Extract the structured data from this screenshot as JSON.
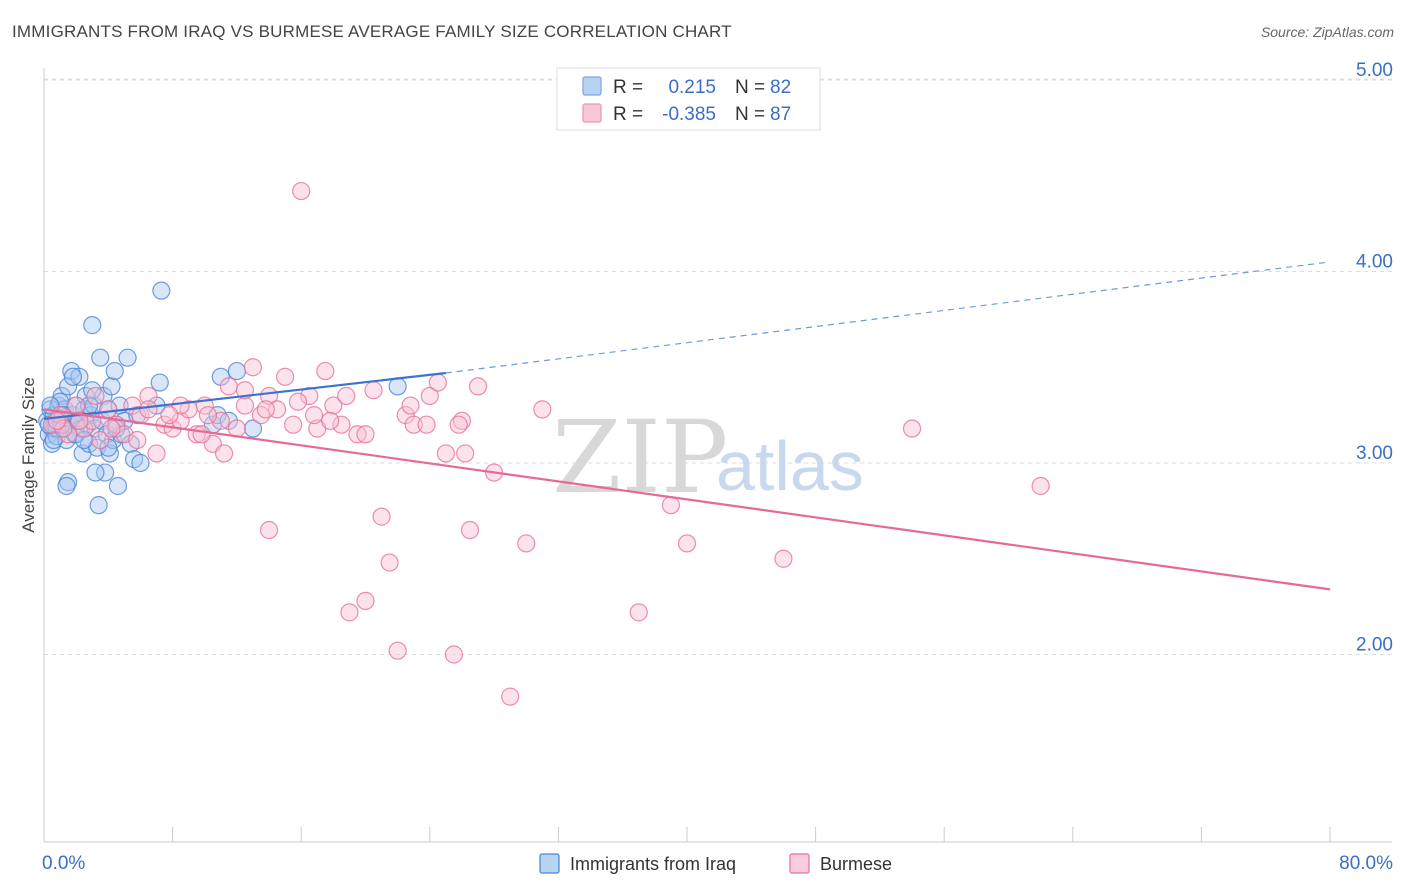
{
  "title": "IMMIGRANTS FROM IRAQ VS BURMESE AVERAGE FAMILY SIZE CORRELATION CHART",
  "source": "Source: ZipAtlas.com",
  "watermark": {
    "part1": "ZIP",
    "part2": "atlas"
  },
  "legend_box": {
    "rows": [
      {
        "r_label": "R =",
        "r_value": "0.215",
        "n_label": "N =",
        "n_value": "82",
        "color": "#7aa7e0",
        "fill": "#b8d2f2"
      },
      {
        "r_label": "R =",
        "r_value": "-0.385",
        "n_label": "N =",
        "n_value": "87",
        "color": "#ee93b3",
        "fill": "#f8c8d8"
      }
    ]
  },
  "chart_data": {
    "type": "scatter",
    "xlabel": "",
    "ylabel": "Average Family Size",
    "xlim": [
      0,
      80
    ],
    "ylim": [
      1.0,
      5.2
    ],
    "x_tick_labels": [
      "0.0%",
      "80.0%"
    ],
    "y_ticks": [
      2.0,
      3.0,
      4.0,
      5.0
    ],
    "y_tick_labels": [
      "2.00",
      "3.00",
      "4.00",
      "5.00"
    ],
    "grid": "horizontal dashed",
    "series": [
      {
        "name": "Immigrants from Iraq",
        "color": "#4a86d8",
        "fill": "#a8c8f0",
        "trend": {
          "x0": 0,
          "y0": 3.23,
          "x1": 25,
          "y1": 3.47,
          "dash_to_x": 80,
          "dash_to_y": 4.05
        },
        "points": [
          [
            0.2,
            3.22
          ],
          [
            0.3,
            3.15
          ],
          [
            0.4,
            3.28
          ],
          [
            0.5,
            3.18
          ],
          [
            0.5,
            3.1
          ],
          [
            0.6,
            3.25
          ],
          [
            0.7,
            3.2
          ],
          [
            0.8,
            3.14
          ],
          [
            0.9,
            3.3
          ],
          [
            1.0,
            3.22
          ],
          [
            1.1,
            3.35
          ],
          [
            1.2,
            3.18
          ],
          [
            1.3,
            3.28
          ],
          [
            1.4,
            3.12
          ],
          [
            1.5,
            3.4
          ],
          [
            1.6,
            3.2
          ],
          [
            1.7,
            3.48
          ],
          [
            1.8,
            3.25
          ],
          [
            1.9,
            3.15
          ],
          [
            2.0,
            3.3
          ],
          [
            2.1,
            3.22
          ],
          [
            2.2,
            3.45
          ],
          [
            2.3,
            3.18
          ],
          [
            2.4,
            3.05
          ],
          [
            2.5,
            3.28
          ],
          [
            2.6,
            3.35
          ],
          [
            2.7,
            3.2
          ],
          [
            2.8,
            3.1
          ],
          [
            2.9,
            3.25
          ],
          [
            3.0,
            3.72
          ],
          [
            3.1,
            3.3
          ],
          [
            3.2,
            3.18
          ],
          [
            3.3,
            3.08
          ],
          [
            3.4,
            2.78
          ],
          [
            3.5,
            3.55
          ],
          [
            3.6,
            3.22
          ],
          [
            3.7,
            3.35
          ],
          [
            3.8,
            2.95
          ],
          [
            3.9,
            3.15
          ],
          [
            4.0,
            3.28
          ],
          [
            4.1,
            3.05
          ],
          [
            4.2,
            3.4
          ],
          [
            4.3,
            3.12
          ],
          [
            4.4,
            3.48
          ],
          [
            4.5,
            3.2
          ],
          [
            4.6,
            2.88
          ],
          [
            4.7,
            3.3
          ],
          [
            4.8,
            3.15
          ],
          [
            5.0,
            3.22
          ],
          [
            5.2,
            3.55
          ],
          [
            5.4,
            3.1
          ],
          [
            5.6,
            3.02
          ],
          [
            5.8,
            3.25
          ],
          [
            6.0,
            3.0
          ],
          [
            7.0,
            3.3
          ],
          [
            7.2,
            3.42
          ],
          [
            7.3,
            3.9
          ],
          [
            10.5,
            3.2
          ],
          [
            10.8,
            3.25
          ],
          [
            11.0,
            3.45
          ],
          [
            11.5,
            3.22
          ],
          [
            12.0,
            3.48
          ],
          [
            13.0,
            3.18
          ],
          [
            22.0,
            3.4
          ],
          [
            1.0,
            3.32
          ],
          [
            1.5,
            2.9
          ],
          [
            2.0,
            3.15
          ],
          [
            0.8,
            3.18
          ],
          [
            1.2,
            3.25
          ],
          [
            2.5,
            3.12
          ],
          [
            3.2,
            2.95
          ],
          [
            4.0,
            3.08
          ],
          [
            0.4,
            3.3
          ],
          [
            0.6,
            3.12
          ],
          [
            1.8,
            3.45
          ],
          [
            2.2,
            3.22
          ],
          [
            3.0,
            3.38
          ],
          [
            0.3,
            3.2
          ],
          [
            1.1,
            3.2
          ],
          [
            2.8,
            3.3
          ],
          [
            1.4,
            2.88
          ],
          [
            4.5,
            3.18
          ]
        ]
      },
      {
        "name": "Burmese",
        "color": "#e8709a",
        "fill": "#f8c0d2",
        "trend": {
          "x0": 0,
          "y0": 3.28,
          "x1": 80,
          "y1": 2.34
        },
        "points": [
          [
            0.5,
            3.2
          ],
          [
            1.0,
            3.25
          ],
          [
            1.5,
            3.15
          ],
          [
            2.0,
            3.3
          ],
          [
            2.5,
            3.18
          ],
          [
            3.0,
            3.22
          ],
          [
            3.5,
            3.12
          ],
          [
            4.0,
            3.28
          ],
          [
            4.5,
            3.2
          ],
          [
            5.0,
            3.15
          ],
          [
            5.5,
            3.3
          ],
          [
            6.0,
            3.25
          ],
          [
            6.5,
            3.35
          ],
          [
            7.0,
            3.05
          ],
          [
            7.5,
            3.2
          ],
          [
            8.0,
            3.18
          ],
          [
            8.5,
            3.22
          ],
          [
            9.0,
            3.28
          ],
          [
            9.5,
            3.15
          ],
          [
            10.0,
            3.3
          ],
          [
            10.5,
            3.1
          ],
          [
            11.0,
            3.22
          ],
          [
            11.5,
            3.4
          ],
          [
            12.0,
            3.18
          ],
          [
            12.5,
            3.3
          ],
          [
            13.0,
            3.5
          ],
          [
            13.5,
            3.25
          ],
          [
            14.0,
            3.35
          ],
          [
            14.5,
            3.28
          ],
          [
            15.0,
            3.45
          ],
          [
            15.5,
            3.2
          ],
          [
            16.0,
            4.42
          ],
          [
            16.5,
            3.35
          ],
          [
            17.0,
            3.18
          ],
          [
            17.5,
            3.48
          ],
          [
            18.0,
            3.3
          ],
          [
            18.5,
            3.2
          ],
          [
            19.0,
            2.22
          ],
          [
            19.5,
            3.15
          ],
          [
            20.0,
            2.28
          ],
          [
            20.5,
            3.38
          ],
          [
            21.0,
            2.72
          ],
          [
            21.5,
            2.48
          ],
          [
            22.0,
            2.02
          ],
          [
            22.5,
            3.25
          ],
          [
            23.0,
            3.2
          ],
          [
            24.0,
            3.35
          ],
          [
            24.5,
            3.42
          ],
          [
            25.0,
            3.05
          ],
          [
            25.5,
            2.0
          ],
          [
            26.0,
            3.22
          ],
          [
            27.0,
            3.4
          ],
          [
            28.0,
            2.95
          ],
          [
            29.0,
            1.78
          ],
          [
            30.0,
            2.58
          ],
          [
            31.0,
            3.28
          ],
          [
            37.0,
            2.22
          ],
          [
            39.0,
            2.78
          ],
          [
            40.0,
            2.58
          ],
          [
            46.0,
            2.5
          ],
          [
            54.0,
            3.18
          ],
          [
            62.0,
            2.88
          ],
          [
            14.0,
            2.65
          ],
          [
            26.5,
            2.65
          ],
          [
            20.0,
            3.15
          ],
          [
            12.5,
            3.38
          ],
          [
            8.5,
            3.3
          ],
          [
            6.5,
            3.28
          ],
          [
            3.2,
            3.35
          ],
          [
            2.2,
            3.22
          ],
          [
            1.2,
            3.18
          ],
          [
            9.8,
            3.15
          ],
          [
            11.2,
            3.05
          ],
          [
            13.8,
            3.28
          ],
          [
            15.8,
            3.32
          ],
          [
            17.8,
            3.22
          ],
          [
            23.8,
            3.2
          ],
          [
            26.2,
            3.05
          ],
          [
            10.2,
            3.25
          ],
          [
            5.8,
            3.12
          ],
          [
            4.2,
            3.18
          ],
          [
            7.8,
            3.25
          ],
          [
            18.8,
            3.35
          ],
          [
            22.8,
            3.3
          ],
          [
            25.8,
            3.2
          ],
          [
            16.8,
            3.25
          ],
          [
            0.8,
            3.22
          ]
        ]
      }
    ]
  }
}
